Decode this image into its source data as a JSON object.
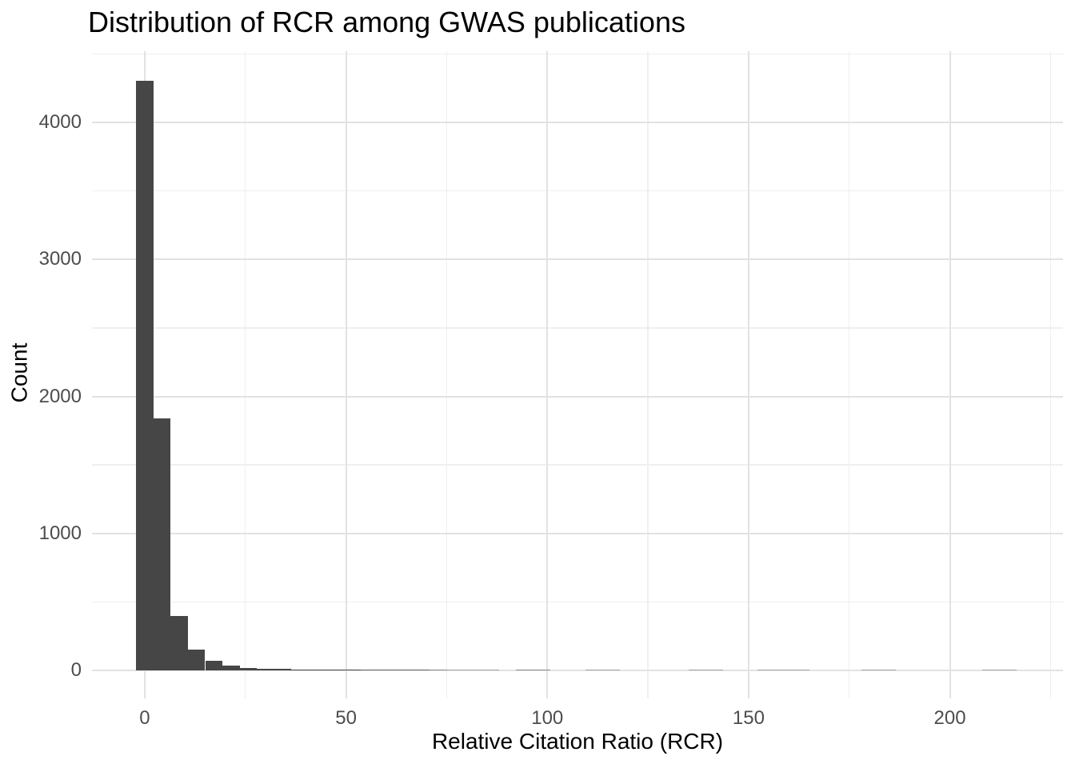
{
  "title": "Distribution of RCR among GWAS publications",
  "chart_data": {
    "type": "bar",
    "subtype": "histogram",
    "title": "Distribution of RCR among GWAS publications",
    "xlabel": "Relative Citation Ratio (RCR)",
    "ylabel": "Count",
    "grid": "on",
    "legend": "none",
    "xlim": [
      -13.1,
      228.1
    ],
    "ylim": [
      -204,
      4520
    ],
    "x_breaks": [
      0,
      50,
      100,
      150,
      200
    ],
    "x_break_labels": [
      "0",
      "50",
      "100",
      "150",
      "200"
    ],
    "x_minor_breaks": [
      25,
      75,
      125,
      175,
      225
    ],
    "y_breaks": [
      0,
      1000,
      2000,
      3000,
      4000
    ],
    "y_break_labels": [
      "0",
      "1000",
      "2000",
      "3000",
      "4000"
    ],
    "y_minor_breaks": [
      500,
      1500,
      2500,
      3500,
      4500
    ],
    "bin_start": -2.145,
    "bin_width": 4.29,
    "counts": [
      4305,
      1840,
      395,
      150,
      70,
      35,
      20,
      14,
      11,
      9,
      8,
      7,
      6,
      5,
      5,
      4,
      4,
      3,
      2,
      2,
      2,
      0,
      3,
      3,
      0,
      0,
      2,
      2,
      0,
      0,
      0,
      0,
      2,
      2,
      0,
      0,
      2,
      2,
      2,
      0,
      0,
      0,
      2,
      2,
      0,
      0,
      0,
      0,
      0,
      2,
      2
    ],
    "colors": {
      "bar": "#464646",
      "grid_major": "#e2e2e2",
      "grid_minor": "#efefef",
      "tick_text": "#4d4d4d",
      "title_text": "#000000",
      "background": "#ffffff"
    }
  }
}
